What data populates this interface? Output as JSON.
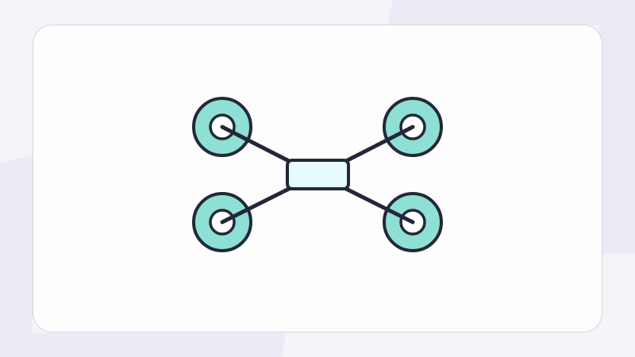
{
  "colors": {
    "page_background": "#f5f5f9",
    "background_accent": "#ebebf5",
    "card_background": "#fdfdfe",
    "card_border": "#d4d4e0",
    "outline": "#232838",
    "rotor_fill": "#8fe0d4",
    "hub_fill": "#ffffff",
    "body_fill": "#e6fcfa"
  },
  "illustration": {
    "subject": "quadcopter-drone-icon",
    "rotor_count": 4
  }
}
